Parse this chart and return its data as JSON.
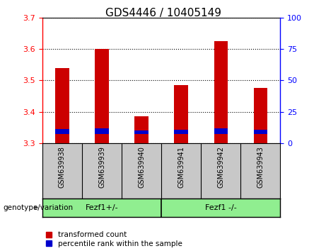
{
  "title": "GDS4446 / 10405149",
  "samples": [
    "GSM639938",
    "GSM639939",
    "GSM639940",
    "GSM639941",
    "GSM639942",
    "GSM639943"
  ],
  "red_top": [
    3.54,
    3.6,
    3.385,
    3.485,
    3.625,
    3.475
  ],
  "red_bottom": [
    3.3,
    3.3,
    3.3,
    3.3,
    3.3,
    3.3
  ],
  "blue_top": [
    3.345,
    3.348,
    3.34,
    3.342,
    3.348,
    3.342
  ],
  "blue_bottom": [
    3.33,
    3.33,
    3.33,
    3.33,
    3.33,
    3.33
  ],
  "ylim": [
    3.3,
    3.7
  ],
  "yticks_left": [
    3.3,
    3.4,
    3.5,
    3.6,
    3.7
  ],
  "yticks_right": [
    0,
    25,
    50,
    75,
    100
  ],
  "groups": [
    {
      "label": "Fezf1+/-",
      "start": 0,
      "end": 3
    },
    {
      "label": "Fezf1 -/-",
      "start": 3,
      "end": 6
    }
  ],
  "bar_width": 0.35,
  "red_color": "#CC0000",
  "blue_color": "#0000CC",
  "legend_items": [
    {
      "label": "transformed count",
      "color": "#CC0000"
    },
    {
      "label": "percentile rank within the sample",
      "color": "#0000CC"
    }
  ],
  "gray_color": "#C8C8C8",
  "green_color": "#90EE90",
  "plot_bg_color": "#FFFFFF",
  "title_fontsize": 11,
  "tick_fontsize": 8,
  "sample_fontsize": 7
}
